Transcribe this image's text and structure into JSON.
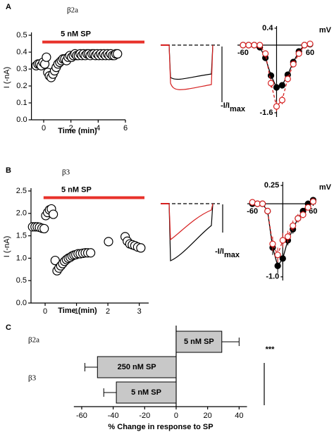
{
  "chart_data": [
    {
      "type": "scatter",
      "panel_label": "A",
      "title": "β2a",
      "xlabel": "Time (min)",
      "ylabel": "I (-nA)",
      "axes": "box",
      "x": [
        -0.55,
        -0.42,
        -0.3,
        -0.18,
        -0.05,
        0.08,
        0.2,
        0.3,
        0.42,
        0.55,
        0.68,
        0.8,
        0.92,
        1.05,
        1.18,
        1.3,
        1.42,
        1.55,
        1.68,
        1.8,
        1.92,
        2.05,
        2.18,
        2.3,
        2.42,
        2.55,
        2.68,
        2.8,
        2.92,
        3.05,
        3.18,
        3.3,
        3.42,
        3.55,
        3.68,
        3.8,
        3.92,
        4.05,
        4.18,
        4.3,
        4.42,
        4.55,
        4.68,
        4.8,
        4.92,
        5.05,
        5.18,
        5.3,
        5.42
      ],
      "values": [
        0.32,
        0.33,
        0.33,
        0.32,
        0.34,
        0.33,
        0.37,
        0.28,
        0.26,
        0.25,
        0.27,
        0.29,
        0.31,
        0.33,
        0.34,
        0.35,
        0.36,
        0.36,
        0.35,
        0.37,
        0.38,
        0.37,
        0.38,
        0.39,
        0.38,
        0.38,
        0.39,
        0.38,
        0.39,
        0.38,
        0.39,
        0.39,
        0.38,
        0.39,
        0.39,
        0.38,
        0.39,
        0.38,
        0.39,
        0.38,
        0.39,
        0.38,
        0.39,
        0.38,
        0.39,
        0.38,
        0.38,
        0.39,
        0.39
      ],
      "color": "#000000",
      "marker_fill": "open",
      "xlim": [
        -0.9,
        6
      ],
      "xticks": [
        0,
        2,
        4,
        6
      ],
      "ylim": [
        0,
        0.5
      ],
      "yticks": [
        {
          "value": 0,
          "label": "0.0"
        },
        0.1,
        0.2,
        0.3,
        0.4,
        0.5
      ],
      "annotation": {
        "text": "5 nM SP",
        "x": [
          -0.1,
          7.5
        ],
        "y": 0.46,
        "color": "#e8312a"
      }
    },
    {
      "type": "scatter",
      "xlabel": "mV",
      "ylabel": "-I/I",
      "ylabel_sub": "max",
      "axes": "cross",
      "x": [
        -60,
        -50,
        -40,
        -30,
        -20,
        -10,
        0,
        10,
        20,
        30,
        40,
        50,
        60
      ],
      "series": [
        {
          "color": "#000000",
          "marker_fill": "filled",
          "line_style": "solid",
          "values": [
            0,
            0,
            0,
            -0.05,
            -0.3,
            -0.72,
            -1.0,
            -0.95,
            -0.7,
            -0.4,
            -0.15,
            0,
            0.02
          ],
          "errors": [
            0.02,
            0.02,
            0.02,
            0.03,
            0.06,
            0.08,
            0.05,
            0.06,
            0.06,
            0.05,
            0.04,
            0.02,
            0.02
          ]
        },
        {
          "color": "#d62020",
          "marker_fill": "open",
          "line_style": "dashed",
          "values": [
            0,
            0,
            0,
            0,
            -0.2,
            -0.9,
            -1.45,
            -1.3,
            -0.8,
            -0.45,
            -0.2,
            0,
            0.03
          ],
          "errors": [
            0.02,
            0.02,
            0.02,
            0.02,
            0.05,
            0.1,
            0.12,
            0.1,
            0.08,
            0.06,
            0.05,
            0.02,
            0.02
          ]
        }
      ],
      "xlim": [
        -70,
        65
      ],
      "xticks": [
        -60,
        60
      ],
      "ylim": [
        -1.7,
        0.45
      ],
      "yticks": [
        0.4,
        -1.6
      ]
    },
    {
      "type": "scatter",
      "panel_label": "B",
      "title": "β3",
      "xlabel": "Time (min)",
      "ylabel": "I (-nA)",
      "axes": "box",
      "x": [
        -0.4,
        -0.32,
        -0.25,
        -0.18,
        -0.1,
        -0.03,
        0.02,
        0.08,
        0.14,
        0.2,
        0.26,
        0.32,
        0.38,
        0.44,
        0.5,
        0.56,
        0.62,
        0.68,
        0.74,
        0.8,
        0.86,
        0.92,
        0.98,
        1.05,
        1.12,
        1.2,
        1.28,
        1.36,
        1.45,
        2.02,
        2.55,
        2.62,
        2.7,
        2.78,
        2.86,
        2.95,
        3.05
      ],
      "values": [
        1.7,
        1.7,
        1.7,
        1.69,
        1.67,
        1.66,
        1.95,
        2.02,
        2.08,
        2.1,
        1.98,
        0.95,
        0.72,
        0.78,
        0.83,
        0.88,
        0.93,
        0.97,
        1.0,
        1.02,
        1.05,
        1.07,
        1.08,
        1.1,
        1.1,
        1.11,
        1.12,
        1.12,
        1.12,
        1.37,
        1.48,
        1.38,
        1.32,
        1.3,
        1.28,
        1.25,
        1.23
      ],
      "color": "#000000",
      "marker_fill": "open",
      "xlim": [
        -0.45,
        3.3
      ],
      "xticks": [
        0,
        1,
        2,
        3
      ],
      "ylim": [
        0,
        2.5
      ],
      "yticks": [
        {
          "value": 0,
          "label": "0.0"
        },
        0.5,
        {
          "value": 1,
          "label": "1.0"
        },
        1.5,
        {
          "value": 2,
          "label": "2.0"
        },
        2.5
      ],
      "annotation": {
        "text": "5 nM SP",
        "x": [
          -0.05,
          3.2
        ],
        "y": 2.35,
        "color": "#e8312a"
      }
    },
    {
      "type": "scatter",
      "xlabel": "mV",
      "ylabel": "-I/I",
      "ylabel_sub": "max",
      "axes": "cross",
      "x": [
        -60,
        -50,
        -40,
        -30,
        -20,
        -10,
        0,
        10,
        20,
        30,
        40,
        50,
        60
      ],
      "series": [
        {
          "color": "#000000",
          "marker_fill": "filled",
          "line_style": "solid",
          "values": [
            0,
            0,
            0,
            -0.1,
            -0.6,
            -0.85,
            -0.75,
            -0.5,
            -0.35,
            -0.2,
            -0.1,
            0,
            0.05
          ],
          "errors": [
            0.02,
            0.02,
            0.02,
            0.04,
            0.1,
            0.1,
            0.08,
            0.07,
            0.06,
            0.05,
            0.04,
            0.02,
            0.03
          ]
        },
        {
          "color": "#d62020",
          "marker_fill": "open",
          "line_style": "dashed",
          "values": [
            0.02,
            0,
            0,
            -0.1,
            -0.55,
            -0.7,
            -0.5,
            -0.45,
            -0.3,
            -0.2,
            -0.15,
            -0.05,
            0.03
          ],
          "errors": [
            0.02,
            0.02,
            0.02,
            0.04,
            0.1,
            0.1,
            0.1,
            0.08,
            0.07,
            0.06,
            0.05,
            0.03,
            0.02
          ]
        }
      ],
      "xlim": [
        -70,
        65
      ],
      "xticks": [
        -60,
        60
      ],
      "ylim": [
        -1.05,
        0.3
      ],
      "yticks": [
        0.25,
        {
          "value": -1,
          "label": "-1.0"
        }
      ]
    },
    {
      "type": "bar",
      "panel_label": "C",
      "orientation": "horizontal",
      "xlabel": "% Change in response to SP",
      "bar_labels": [
        "5 nM SP",
        "250 nM SP",
        "5 nM SP"
      ],
      "values": [
        29,
        -50,
        -38
      ],
      "errors": [
        11,
        8,
        8
      ],
      "group_labels": [
        "β2a",
        "β3"
      ],
      "color": "#c8c8c8",
      "xlim": [
        -65,
        45
      ],
      "xticks": [
        -60,
        -40,
        -20,
        0,
        20,
        40
      ],
      "annotation": {
        "text": "***"
      }
    }
  ]
}
